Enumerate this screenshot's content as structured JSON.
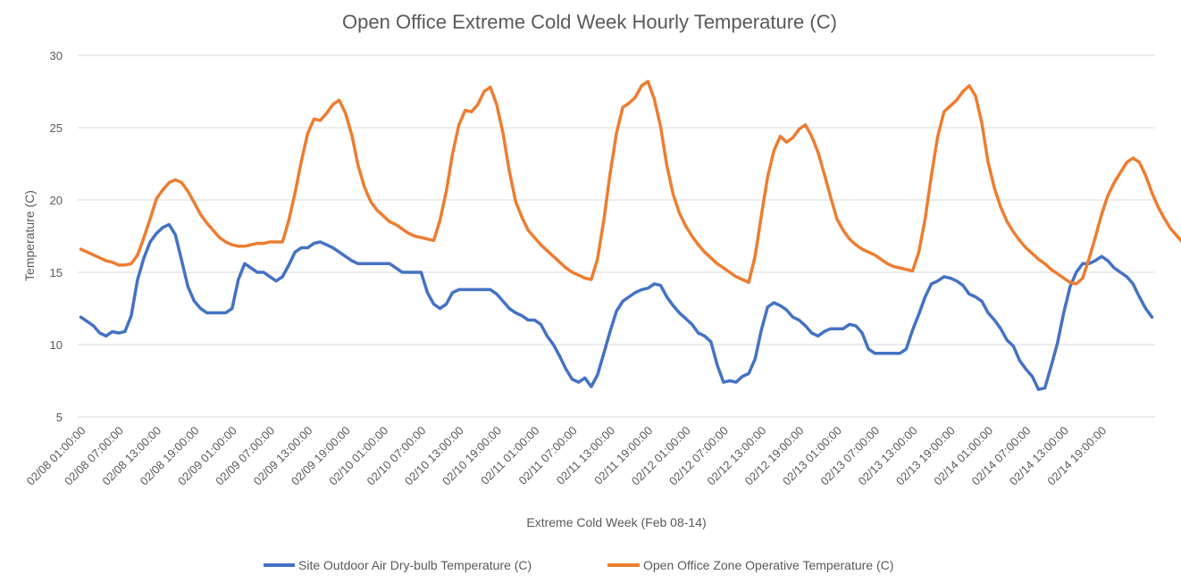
{
  "chart_data": {
    "type": "line",
    "title": "Open Office Extreme Cold Week Hourly Temperature (C)",
    "xlabel": "Extreme Cold Week (Feb 08-14)",
    "ylabel": "Temperature (C)",
    "ylim": [
      5,
      30
    ],
    "yticks": [
      "5",
      "10",
      "15",
      "20",
      "25",
      "30"
    ],
    "grid": true,
    "legend_position": "bottom",
    "x_tick_labels": [
      "02/08 01:00:00",
      "02/08 07:00:00",
      "02/08 13:00:00",
      "02/08 19:00:00",
      "02/09 01:00:00",
      "02/09 07:00:00",
      "02/09 13:00:00",
      "02/09 19:00:00",
      "02/10 01:00:00",
      "02/10 07:00:00",
      "02/10 13:00:00",
      "02/10 19:00:00",
      "02/11 01:00:00",
      "02/11 07:00:00",
      "02/11 13:00:00",
      "02/11 19:00:00",
      "02/12 01:00:00",
      "02/12 07:00:00",
      "02/12 13:00:00",
      "02/12 19:00:00",
      "02/13 01:00:00",
      "02/13 07:00:00",
      "02/13 13:00:00",
      "02/13 19:00:00",
      "02/14 01:00:00",
      "02/14 07:00:00",
      "02/14 13:00:00",
      "02/14 19:00:00"
    ],
    "series": [
      {
        "name": "Site Outdoor Air Dry-bulb Temperature (C)",
        "color": "#4472c4",
        "values": [
          11.9,
          11.6,
          11.3,
          10.8,
          10.6,
          10.9,
          10.8,
          10.9,
          12.0,
          14.5,
          16.0,
          17.1,
          17.7,
          18.1,
          18.3,
          17.6,
          15.8,
          14.0,
          13.0,
          12.5,
          12.2,
          12.2,
          12.2,
          12.2,
          12.5,
          14.5,
          15.6,
          15.3,
          15.0,
          15.0,
          14.7,
          14.4,
          14.7,
          15.5,
          16.4,
          16.7,
          16.7,
          17.0,
          17.1,
          16.9,
          16.7,
          16.4,
          16.1,
          15.8,
          15.6,
          15.6,
          15.6,
          15.6,
          15.6,
          15.6,
          15.3,
          15.0,
          15.0,
          15.0,
          15.0,
          13.6,
          12.8,
          12.5,
          12.8,
          13.6,
          13.8,
          13.8,
          13.8,
          13.8,
          13.8,
          13.8,
          13.5,
          13.0,
          12.5,
          12.2,
          12.0,
          11.7,
          11.7,
          11.4,
          10.6,
          10.0,
          9.2,
          8.3,
          7.6,
          7.4,
          7.7,
          7.1,
          7.9,
          9.4,
          10.9,
          12.3,
          13.0,
          13.3,
          13.6,
          13.8,
          13.9,
          14.2,
          14.1,
          13.3,
          12.7,
          12.2,
          11.8,
          11.4,
          10.8,
          10.6,
          10.2,
          8.6,
          7.4,
          7.5,
          7.4,
          7.8,
          8.0,
          9.0,
          11.0,
          12.6,
          12.9,
          12.7,
          12.4,
          11.9,
          11.7,
          11.3,
          10.8,
          10.6,
          10.9,
          11.1,
          11.1,
          11.1,
          11.4,
          11.3,
          10.8,
          9.7,
          9.4,
          9.4,
          9.4,
          9.4,
          9.4,
          9.7,
          11.0,
          12.1,
          13.3,
          14.2,
          14.4,
          14.7,
          14.6,
          14.4,
          14.1,
          13.5,
          13.3,
          13.0,
          12.2,
          11.7,
          11.1,
          10.3,
          9.9,
          8.9,
          8.3,
          7.8,
          6.9,
          7.0,
          8.5,
          10.1,
          12.2,
          14.0,
          15.0,
          15.6,
          15.6,
          15.8,
          16.1,
          15.8,
          15.3,
          15.0,
          14.7,
          14.2,
          13.3,
          12.5,
          11.9
        ]
      },
      {
        "name": "Open Office Zone Operative Temperature (C)",
        "color": "#ed7d31",
        "values": [
          16.6,
          16.4,
          16.2,
          16.0,
          15.8,
          15.7,
          15.5,
          15.5,
          15.6,
          16.2,
          17.4,
          18.7,
          20.1,
          20.7,
          21.2,
          21.4,
          21.2,
          20.6,
          19.8,
          19.0,
          18.4,
          17.9,
          17.4,
          17.1,
          16.9,
          16.8,
          16.8,
          16.9,
          17.0,
          17.0,
          17.1,
          17.1,
          17.1,
          18.6,
          20.5,
          22.7,
          24.6,
          25.6,
          25.5,
          26.0,
          26.6,
          26.9,
          26.0,
          24.5,
          22.4,
          20.9,
          19.9,
          19.3,
          18.9,
          18.5,
          18.3,
          18.0,
          17.7,
          17.5,
          17.4,
          17.3,
          17.2,
          18.6,
          20.6,
          23.2,
          25.2,
          26.2,
          26.1,
          26.6,
          27.5,
          27.8,
          26.6,
          24.6,
          22.0,
          19.9,
          18.8,
          17.9,
          17.4,
          16.9,
          16.5,
          16.1,
          15.7,
          15.3,
          15.0,
          14.8,
          14.6,
          14.5,
          15.9,
          18.6,
          21.8,
          24.6,
          26.4,
          26.7,
          27.1,
          27.9,
          28.2,
          27.0,
          25.1,
          22.4,
          20.4,
          19.1,
          18.2,
          17.5,
          16.9,
          16.4,
          16.0,
          15.6,
          15.3,
          15.0,
          14.7,
          14.5,
          14.3,
          16.1,
          18.9,
          21.6,
          23.4,
          24.4,
          24.0,
          24.3,
          24.9,
          25.2,
          24.4,
          23.3,
          21.8,
          20.2,
          18.7,
          17.9,
          17.3,
          16.9,
          16.6,
          16.4,
          16.2,
          15.9,
          15.6,
          15.4,
          15.3,
          15.2,
          15.1,
          16.4,
          18.7,
          21.7,
          24.4,
          26.1,
          26.5,
          26.9,
          27.5,
          27.9,
          27.2,
          25.3,
          22.6,
          20.8,
          19.5,
          18.5,
          17.8,
          17.2,
          16.7,
          16.3,
          15.9,
          15.6,
          15.2,
          14.9,
          14.6,
          14.3,
          14.2,
          14.6,
          15.9,
          17.4,
          19.0,
          20.3,
          21.2,
          21.9,
          22.6,
          22.9,
          22.6,
          21.7,
          20.5,
          19.5,
          18.7,
          18.0,
          17.5,
          17.0,
          16.8
        ]
      }
    ]
  }
}
